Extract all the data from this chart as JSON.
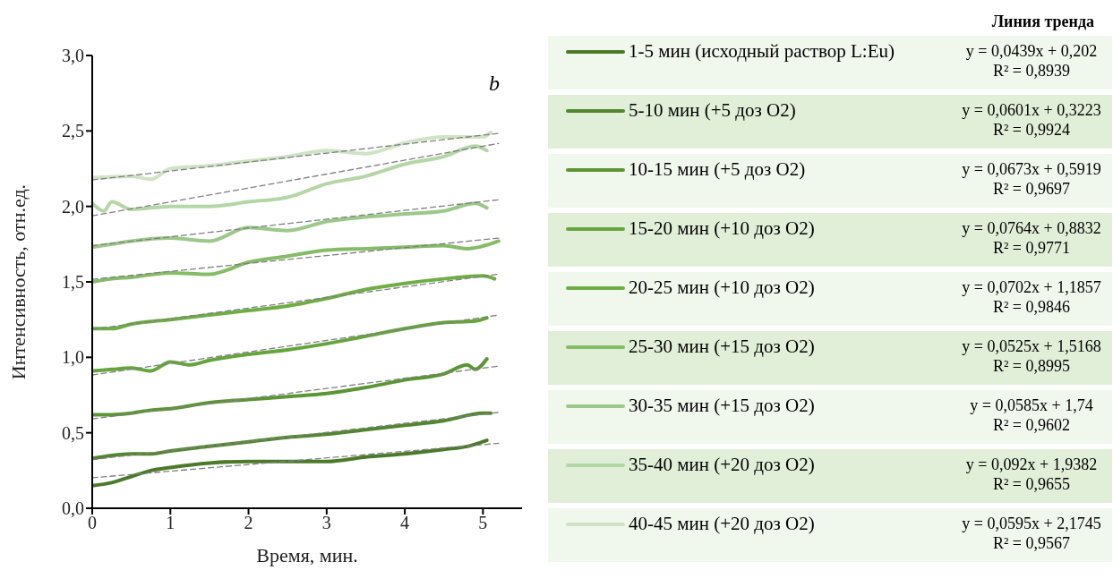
{
  "chart_data": {
    "type": "line",
    "xlabel": "Время, мин.",
    "ylabel": "Интенсивность, отн.ед.",
    "legend_title": "Линия тренда",
    "xlim": [
      0,
      5.5
    ],
    "xticks": [
      0,
      1,
      2,
      3,
      4,
      5
    ],
    "ylim": [
      0,
      3
    ],
    "yticks": [
      {
        "value": 0,
        "label": "0,0"
      },
      {
        "value": 0.5,
        "label": "0,5"
      },
      {
        "value": 1,
        "label": "1,0"
      },
      {
        "value": 1.5,
        "label": "1,5"
      },
      {
        "value": 2,
        "label": "2,0"
      },
      {
        "value": 2.5,
        "label": "2,5"
      },
      {
        "value": 3,
        "label": "3,0"
      }
    ],
    "grid": false,
    "legend": "right",
    "marker": "none",
    "annotations": [
      "b",
      "y = 0,0439x + 0,202",
      "R² = 0,8939",
      "y = 0,0601x + 0,3223",
      "R² = 0,9924",
      "y = 0,0673x + 0,5919",
      "R² = 0,9697",
      "y = 0,0764x + 0,8832",
      "R² = 0,9771",
      "y = 0,0702x + 1,1857",
      "R² = 0,9846",
      "y = 0,0525x + 1,5168",
      "R² = 0,8995",
      "y = 0,0585x + 1,74",
      "R² = 0,9602",
      "y = 0,092x + 1,9382",
      "R² = 0,9655",
      "y = 0,0595x + 2,1745",
      "R² = 0,9567"
    ],
    "series": [
      {
        "name": "1-5 мин (исходный раствор L:Eu)",
        "color": "#4a7a2a",
        "x": [
          0,
          0.25,
          0.5,
          0.75,
          1,
          1.5,
          2,
          2.5,
          3,
          3.5,
          4,
          4.5,
          4.8,
          5.05
        ],
        "values": [
          0.15,
          0.17,
          0.21,
          0.25,
          0.27,
          0.3,
          0.31,
          0.31,
          0.31,
          0.34,
          0.36,
          0.39,
          0.41,
          0.45
        ]
      },
      {
        "name": "5-10 мин (+5 доз O2)",
        "color": "#52872f",
        "x": [
          0,
          0.25,
          0.5,
          0.75,
          1,
          1.5,
          2,
          2.5,
          3,
          3.5,
          4,
          4.5,
          5,
          5.1
        ],
        "values": [
          0.33,
          0.35,
          0.36,
          0.36,
          0.38,
          0.41,
          0.44,
          0.47,
          0.49,
          0.52,
          0.55,
          0.58,
          0.63,
          0.63
        ]
      },
      {
        "name": "10-15 мин (+5 доз O2)",
        "color": "#5b9635",
        "x": [
          0,
          0.25,
          0.5,
          0.75,
          1,
          1.5,
          2,
          2.5,
          3,
          3.5,
          4,
          4.5,
          4.8,
          4.9,
          5.05
        ],
        "values": [
          0.62,
          0.62,
          0.63,
          0.65,
          0.66,
          0.7,
          0.72,
          0.74,
          0.76,
          0.8,
          0.85,
          0.89,
          0.95,
          0.92,
          0.99
        ]
      },
      {
        "name": "15-20 мин (+10 доз O2)",
        "color": "#66a53d",
        "x": [
          0,
          0.25,
          0.5,
          0.75,
          1,
          1.25,
          1.5,
          2,
          2.5,
          3,
          3.5,
          4,
          4.5,
          4.9,
          5.05
        ],
        "values": [
          0.91,
          0.92,
          0.93,
          0.91,
          0.97,
          0.95,
          0.98,
          1.02,
          1.05,
          1.09,
          1.14,
          1.19,
          1.23,
          1.24,
          1.26
        ]
      },
      {
        "name": "20-25 мин (+10 доз O2)",
        "color": "#6fae45",
        "x": [
          0,
          0.25,
          0.5,
          1,
          1.5,
          2,
          2.5,
          3,
          3.5,
          4,
          4.5,
          5,
          5.15
        ],
        "values": [
          1.19,
          1.19,
          1.22,
          1.25,
          1.28,
          1.31,
          1.34,
          1.39,
          1.45,
          1.49,
          1.52,
          1.54,
          1.52
        ]
      },
      {
        "name": "25-30 мин (+15 доз O2)",
        "color": "#86bb68",
        "x": [
          0,
          0.25,
          0.5,
          1,
          1.5,
          2,
          2.5,
          3,
          3.5,
          4,
          4.5,
          4.8,
          5.2
        ],
        "values": [
          1.5,
          1.52,
          1.53,
          1.56,
          1.55,
          1.63,
          1.67,
          1.71,
          1.72,
          1.73,
          1.74,
          1.72,
          1.77
        ]
      },
      {
        "name": "30-35 мин (+15 доз O2)",
        "color": "#9cc889",
        "x": [
          0,
          0.25,
          0.5,
          1,
          1.5,
          2,
          2.5,
          3,
          3.5,
          4,
          4.5,
          4.9,
          5.05
        ],
        "values": [
          1.73,
          1.75,
          1.77,
          1.79,
          1.77,
          1.86,
          1.84,
          1.9,
          1.93,
          1.95,
          1.97,
          2.02,
          1.99
        ]
      },
      {
        "name": "35-40 мин (+20 доз O2)",
        "color": "#b5d6a6",
        "x": [
          0,
          0.15,
          0.25,
          0.5,
          1,
          1.5,
          2,
          2.5,
          3,
          3.5,
          4,
          4.5,
          4.9,
          5.05
        ],
        "values": [
          2.02,
          1.97,
          2.03,
          1.98,
          2,
          2,
          2.03,
          2.06,
          2.15,
          2.2,
          2.28,
          2.33,
          2.4,
          2.37
        ]
      },
      {
        "name": "40-45 мин (+20 доз O2)",
        "color": "#cfe3c5",
        "x": [
          0,
          0.5,
          0.75,
          1,
          1.5,
          2,
          2.5,
          3,
          3.5,
          4,
          4.5,
          5,
          5.1
        ],
        "values": [
          2.19,
          2.2,
          2.18,
          2.25,
          2.27,
          2.3,
          2.33,
          2.37,
          2.35,
          2.42,
          2.46,
          2.46,
          2.49
        ]
      },
      {
        "color": "#808080",
        "line_style": "dashed",
        "x": [
          0,
          5.2
        ],
        "values": [
          0.202,
          0.43
        ]
      },
      {
        "color": "#808080",
        "line_style": "dashed",
        "x": [
          0,
          5.2
        ],
        "values": [
          0.322,
          0.635
        ]
      },
      {
        "color": "#808080",
        "line_style": "dashed",
        "x": [
          0,
          5.2
        ],
        "values": [
          0.592,
          0.942
        ]
      },
      {
        "color": "#808080",
        "line_style": "dashed",
        "x": [
          0,
          5.2
        ],
        "values": [
          0.883,
          1.28
        ]
      },
      {
        "color": "#808080",
        "line_style": "dashed",
        "x": [
          0,
          5.2
        ],
        "values": [
          1.186,
          1.551
        ]
      },
      {
        "color": "#808080",
        "line_style": "dashed",
        "x": [
          0,
          5.2
        ],
        "values": [
          1.517,
          1.79
        ]
      },
      {
        "color": "#808080",
        "line_style": "dashed",
        "x": [
          0,
          5.2
        ],
        "values": [
          1.74,
          2.044
        ]
      },
      {
        "color": "#808080",
        "line_style": "dashed",
        "x": [
          0,
          5.2
        ],
        "values": [
          1.938,
          2.417
        ]
      },
      {
        "color": "#808080",
        "line_style": "dashed",
        "x": [
          0,
          5.2
        ],
        "values": [
          2.175,
          2.484
        ]
      }
    ]
  }
}
